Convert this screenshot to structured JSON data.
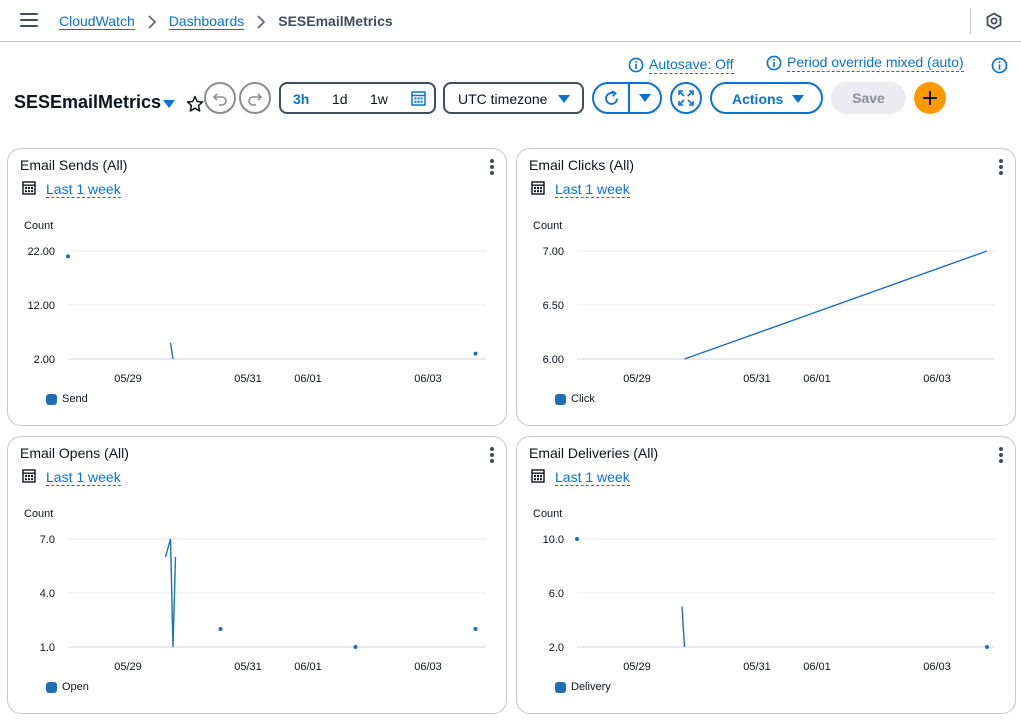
{
  "nav": {
    "breadcrumbs": [
      "CloudWatch",
      "Dashboards"
    ],
    "current": "SESEmailMetrics"
  },
  "info": {
    "autosave": "Autosave: Off",
    "period": "Period override mixed (auto)"
  },
  "toolbar": {
    "title": "SESEmailMetrics",
    "ranges": [
      "3h",
      "1d",
      "1w"
    ],
    "active_range": "3h",
    "timezone": "UTC timezone",
    "actions_label": "Actions",
    "save_label": "Save"
  },
  "colors": {
    "accent": "#0972d3",
    "series": "#1f6fb4",
    "add": "#ff9900"
  },
  "widgets": [
    {
      "title": "Email Sends (All)",
      "range": "Last 1 week",
      "ylabel": "Count",
      "legend": "Send"
    },
    {
      "title": "Email Clicks (All)",
      "range": "Last 1 week",
      "ylabel": "Count",
      "legend": "Click"
    },
    {
      "title": "Email Opens (All)",
      "range": "Last 1 week",
      "ylabel": "Count",
      "legend": "Open"
    },
    {
      "title": "Email Deliveries (All)",
      "range": "Last 1 week",
      "ylabel": "Count",
      "legend": "Delivery"
    }
  ],
  "chart_data": [
    {
      "type": "line",
      "title": "Email Sends (All)",
      "ylabel": "Count",
      "yticks": [
        "2.00",
        "12.00",
        "22.00"
      ],
      "ylim": [
        2,
        22
      ],
      "xticks": [
        "05/29",
        "05/31",
        "06/01",
        "06/03"
      ],
      "xlim": [
        "2025-05-28T00:00",
        "2025-06-03T20:00"
      ],
      "legend": "bottom-left",
      "series": [
        {
          "name": "Send",
          "segments": [
            [
              [
                "2025-05-28T00:00",
                21
              ]
            ],
            [
              [
                "2025-05-29T17:00",
                5
              ],
              [
                "2025-05-29T18:00",
                2
              ]
            ],
            [
              [
                "2025-06-03T19:00",
                3
              ]
            ]
          ]
        }
      ]
    },
    {
      "type": "line",
      "title": "Email Clicks (All)",
      "ylabel": "Count",
      "yticks": [
        "6.00",
        "6.50",
        "7.00"
      ],
      "ylim": [
        6,
        7
      ],
      "xticks": [
        "05/29",
        "05/31",
        "06/01",
        "06/03"
      ],
      "xlim": [
        "2025-05-28T00:00",
        "2025-06-03T20:00"
      ],
      "legend": "bottom-left",
      "series": [
        {
          "name": "Click",
          "segments": [
            [
              [
                "2025-05-29T19:00",
                6
              ],
              [
                "2025-06-03T20:00",
                7
              ]
            ]
          ]
        }
      ]
    },
    {
      "type": "line",
      "title": "Email Opens (All)",
      "ylabel": "Count",
      "yticks": [
        "1.0",
        "4.0",
        "7.0"
      ],
      "ylim": [
        1,
        7
      ],
      "xticks": [
        "05/29",
        "05/31",
        "06/01",
        "06/03"
      ],
      "xlim": [
        "2025-05-28T00:00",
        "2025-06-03T20:00"
      ],
      "legend": "bottom-left",
      "series": [
        {
          "name": "Open",
          "segments": [
            [
              [
                "2025-05-29T15:00",
                6
              ],
              [
                "2025-05-29T17:00",
                7
              ],
              [
                "2025-05-29T18:00",
                1
              ],
              [
                "2025-05-29T19:00",
                6
              ]
            ],
            [
              [
                "2025-05-30T13:00",
                2
              ]
            ],
            [
              [
                "2025-06-01T19:00",
                1
              ]
            ],
            [
              [
                "2025-06-03T19:00",
                2
              ]
            ]
          ]
        }
      ]
    },
    {
      "type": "line",
      "title": "Email Deliveries (All)",
      "ylabel": "Count",
      "yticks": [
        "2.0",
        "6.0",
        "10.0"
      ],
      "ylim": [
        2,
        10
      ],
      "xticks": [
        "05/29",
        "05/31",
        "06/01",
        "06/03"
      ],
      "xlim": [
        "2025-05-28T00:00",
        "2025-06-03T20:00"
      ],
      "legend": "bottom-left",
      "series": [
        {
          "name": "Delivery",
          "segments": [
            [
              [
                "2025-05-28T00:00",
                10
              ]
            ],
            [
              [
                "2025-05-29T18:00",
                5
              ],
              [
                "2025-05-29T19:00",
                2
              ]
            ],
            [
              [
                "2025-06-03T20:00",
                2
              ]
            ]
          ]
        }
      ]
    }
  ]
}
